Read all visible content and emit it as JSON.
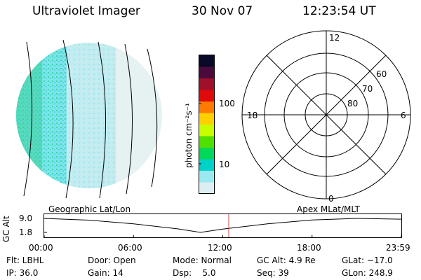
{
  "header": {
    "instrument": "Ultraviolet Imager",
    "date": "30 Nov 07",
    "time": "12:23:54 UT"
  },
  "colorbar": {
    "label": "photon cm⁻²s⁻¹",
    "ticks": [
      "100",
      "10"
    ],
    "colors": [
      "#0a0a28",
      "#4b0a3c",
      "#a0102a",
      "#e00a0a",
      "#ff7a00",
      "#ffd000",
      "#c8ff00",
      "#50e000",
      "#00d85a",
      "#00d2c8",
      "#9ae8f0",
      "#dceef2"
    ]
  },
  "polar_plot": {
    "mlt_labels": {
      "top": "12",
      "left": "18",
      "right": "6",
      "bottom": "0"
    },
    "lat_labels": [
      "60",
      "70",
      "80"
    ]
  },
  "timeline": {
    "axis_label": "GC Alt",
    "left_label": "Geographic Lat/Lon",
    "right_label": "Apex  MLat/MLT",
    "y_ticks": [
      "9.0",
      "1.8"
    ],
    "x_ticks": [
      "00:00",
      "06:00",
      "12:00",
      "18:00",
      "23:59"
    ],
    "orbit_curve": {
      "type": "line",
      "x_hours": [
        0,
        3,
        6,
        9,
        10.5,
        12,
        15,
        18,
        21,
        23.98
      ],
      "gc_alt_re": [
        9.0,
        8.1,
        6.2,
        3.6,
        1.8,
        3.5,
        6.2,
        8.2,
        9.0,
        8.6
      ]
    },
    "current_time_hours": 12.4,
    "marker_color": "#c85050"
  },
  "info": {
    "flt": "Flt: LBHL",
    "door": "Door: Open",
    "mode": "Mode: Normal",
    "gc_alt": "GC Alt: 4.9 Re",
    "glat": "GLat: −17.0",
    "ip": "IP: 36.0",
    "gain": "Gain: 14",
    "dsp": "Dsp:    5.0",
    "seq": "Seq: 39",
    "glon": "GLon: 248.9"
  }
}
